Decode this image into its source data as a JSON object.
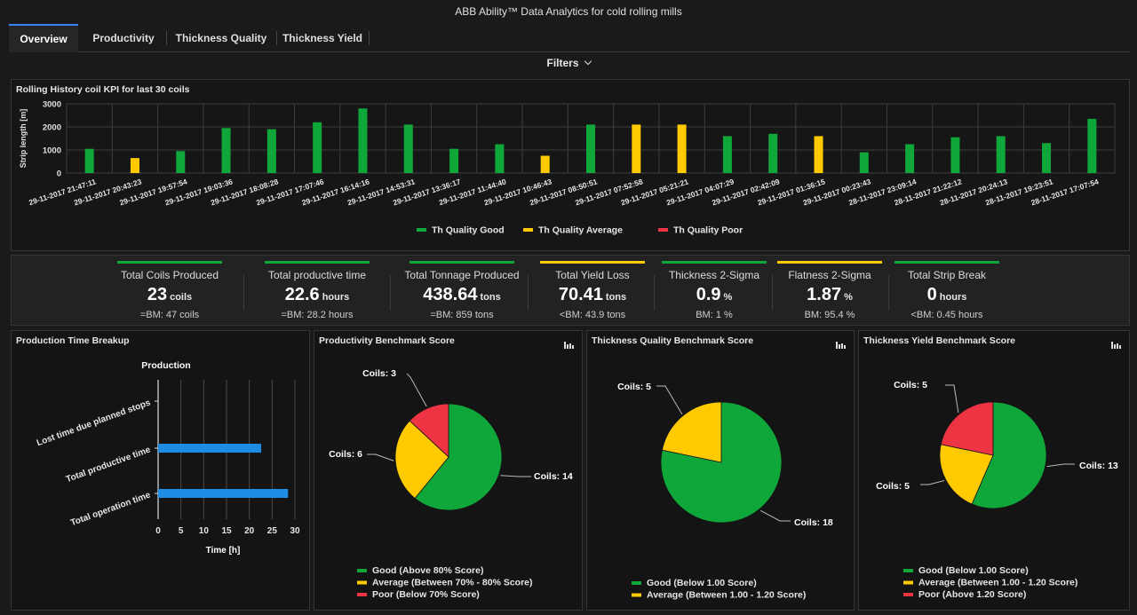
{
  "app": {
    "title": "ABB Ability™ Data Analytics for cold rolling mills"
  },
  "tabs": [
    {
      "label": "Overview"
    },
    {
      "label": "Productivity"
    },
    {
      "label": "Thickness Quality"
    },
    {
      "label": "Thickness Yield"
    }
  ],
  "filters": {
    "label": "Filters"
  },
  "colors": {
    "good": "#0fa63a",
    "average": "#ffcb00",
    "poor": "#ee3342",
    "accent": "#3b82f6",
    "bar_blue": "#1e8ce3"
  },
  "history": {
    "title": "Rolling History coil KPI for last 30 coils"
  },
  "kpis": [
    {
      "label": "Total Coils Produced",
      "value": "23",
      "unit": "coils",
      "bm": "=BM: 47 coils",
      "status": "good"
    },
    {
      "label": "Total productive time",
      "value": "22.6",
      "unit": "hours",
      "bm": "=BM: 28.2 hours",
      "status": "good"
    },
    {
      "label": "Total Tonnage Produced",
      "value": "438.64",
      "unit": "tons",
      "bm": "=BM: 859 tons",
      "status": "good"
    },
    {
      "label": "Total Yield Loss",
      "value": "70.41",
      "unit": "tons",
      "bm": "<BM: 43.9 tons",
      "status": "average"
    },
    {
      "label": "Thickness 2-Sigma",
      "value": "0.9",
      "unit": "%",
      "bm": "BM: 1 %",
      "status": "good"
    },
    {
      "label": "Flatness 2-Sigma",
      "value": "1.87",
      "unit": "%",
      "bm": "BM: 95.4 %",
      "status": "average"
    },
    {
      "label": "Total Strip Break",
      "value": "0",
      "unit": "hours",
      "bm": "<BM: 0.45 hours",
      "status": "good"
    }
  ],
  "panels": {
    "production": {
      "title": "Production Time Breakup"
    },
    "productivity": {
      "title": "Productivity Benchmark Score"
    },
    "thickness_quality": {
      "title": "Thickness Quality Benchmark Score"
    },
    "thickness_yield": {
      "title": "Thickness Yield Benchmark Score"
    }
  },
  "chart_data": [
    {
      "type": "bar",
      "title": "Rolling History coil KPI for last 30 coils",
      "ylabel": "Strip length [m]",
      "ylim": [
        0,
        3000
      ],
      "yticks": [
        0,
        1000,
        2000,
        3000
      ],
      "grid": true,
      "legend_position": "bottom",
      "legend": [
        "Th Quality Good",
        "Th Quality Average",
        "Th Quality Poor"
      ],
      "categories": [
        "29-11-2017 21:47:11",
        "29-11-2017 20:43:23",
        "29-11-2017 19:57:54",
        "29-11-2017 19:03:36",
        "29-11-2017 18:08:28",
        "29-11-2017 17:07:46",
        "29-11-2017 16:14:16",
        "29-11-2017 14:53:31",
        "29-11-2017 13:36:17",
        "29-11-2017 11:44:40",
        "29-11-2017 10:46:43",
        "29-11-2017 08:50:51",
        "29-11-2017 07:52:58",
        "29-11-2017 05:21:21",
        "29-11-2017 04:07:29",
        "29-11-2017 02:42:09",
        "29-11-2017 01:36:15",
        "29-11-2017 00:23:43",
        "28-11-2017 23:09:14",
        "28-11-2017 21:22:12",
        "28-11-2017 20:24:13",
        "28-11-2017 19:23:51",
        "28-11-2017 17:07:54"
      ],
      "values": [
        1050,
        650,
        950,
        1950,
        1900,
        2200,
        2800,
        2100,
        1050,
        1250,
        750,
        2100,
        2100,
        2100,
        1600,
        1700,
        1600,
        900,
        1250,
        1550,
        1600,
        1300,
        2350
      ],
      "quality": [
        "Good",
        "Average",
        "Good",
        "Good",
        "Good",
        "Good",
        "Good",
        "Good",
        "Good",
        "Good",
        "Average",
        "Good",
        "Average",
        "Average",
        "Good",
        "Good",
        "Average",
        "Good",
        "Good",
        "Good",
        "Good",
        "Good",
        "Good"
      ]
    },
    {
      "type": "bar",
      "orientation": "horizontal",
      "title": "Production",
      "xlabel": "Time [h]",
      "xlim": [
        0,
        30
      ],
      "xticks": [
        0,
        5,
        10,
        15,
        20,
        25,
        30
      ],
      "grid": true,
      "categories": [
        "Lost time due planned stops",
        "Total productive time",
        "Total operation time"
      ],
      "values": [
        0,
        22.6,
        28.5
      ]
    },
    {
      "type": "pie",
      "title": "Productivity Benchmark Score",
      "slices": [
        {
          "label": "Coils: 14",
          "value": 14,
          "color": "#0fa63a"
        },
        {
          "label": "Coils: 6",
          "value": 6,
          "color": "#ffcb00"
        },
        {
          "label": "Coils: 3",
          "value": 3,
          "color": "#ee3342"
        }
      ],
      "legend": [
        {
          "label": "Good (Above 80% Score)",
          "color": "#0fa63a"
        },
        {
          "label": "Average (Between 70% - 80% Score)",
          "color": "#ffcb00"
        },
        {
          "label": "Poor (Below 70% Score)",
          "color": "#ee3342"
        }
      ]
    },
    {
      "type": "pie",
      "title": "Thickness Quality Benchmark Score",
      "slices": [
        {
          "label": "Coils: 18",
          "value": 18,
          "color": "#0fa63a"
        },
        {
          "label": "Coils: 5",
          "value": 5,
          "color": "#ffcb00"
        }
      ],
      "legend": [
        {
          "label": "Good (Below 1.00 Score)",
          "color": "#0fa63a"
        },
        {
          "label": "Average (Between 1.00 - 1.20 Score)",
          "color": "#ffcb00"
        }
      ]
    },
    {
      "type": "pie",
      "title": "Thickness Yield Benchmark Score",
      "slices": [
        {
          "label": "Coils: 13",
          "value": 13,
          "color": "#0fa63a"
        },
        {
          "label": "Coils: 5",
          "value": 5,
          "color": "#ffcb00"
        },
        {
          "label": "Coils: 5",
          "value": 5,
          "color": "#ee3342"
        }
      ],
      "legend": [
        {
          "label": "Good (Below 1.00 Score)",
          "color": "#0fa63a"
        },
        {
          "label": "Average (Between 1.00 - 1.20 Score)",
          "color": "#ffcb00"
        },
        {
          "label": "Poor (Above 1.20 Score)",
          "color": "#ee3342"
        }
      ]
    }
  ]
}
